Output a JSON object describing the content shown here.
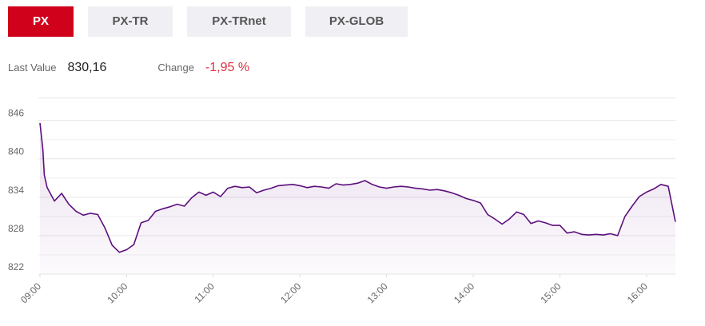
{
  "tabs": [
    {
      "label": "PX",
      "selected": true
    },
    {
      "label": "PX-TR",
      "selected": false
    },
    {
      "label": "PX-TRnet",
      "selected": false
    },
    {
      "label": "PX-GLOB",
      "selected": false
    }
  ],
  "stats": {
    "last_value_label": "Last Value",
    "last_value": "830,16",
    "change_label": "Change",
    "change": "-1,95 %"
  },
  "chart_data": {
    "type": "line",
    "x": [
      "09:00",
      "09:02",
      "09:03",
      "09:05",
      "09:10",
      "09:15",
      "09:20",
      "09:25",
      "09:30",
      "09:35",
      "09:40",
      "09:45",
      "09:50",
      "09:55",
      "10:00",
      "10:05",
      "10:10",
      "10:15",
      "10:20",
      "10:25",
      "10:30",
      "10:35",
      "10:40",
      "10:45",
      "10:50",
      "10:55",
      "11:00",
      "11:05",
      "11:10",
      "11:15",
      "11:20",
      "11:25",
      "11:30",
      "11:35",
      "11:40",
      "11:45",
      "11:50",
      "11:55",
      "12:00",
      "12:05",
      "12:10",
      "12:15",
      "12:20",
      "12:25",
      "12:30",
      "12:35",
      "12:40",
      "12:45",
      "12:50",
      "12:55",
      "13:00",
      "13:05",
      "13:10",
      "13:15",
      "13:20",
      "13:25",
      "13:30",
      "13:35",
      "13:40",
      "13:45",
      "13:50",
      "13:55",
      "14:00",
      "14:05",
      "14:10",
      "14:15",
      "14:20",
      "14:25",
      "14:30",
      "14:35",
      "14:40",
      "14:45",
      "14:50",
      "14:55",
      "15:00",
      "15:05",
      "15:10",
      "15:15",
      "15:20",
      "15:25",
      "15:30",
      "15:35",
      "15:40",
      "15:45",
      "15:50",
      "15:55",
      "16:00",
      "16:05",
      "16:10",
      "16:15",
      "16:20"
    ],
    "series": [
      {
        "name": "PX",
        "color": "#5c0f7c",
        "values": [
          845.6,
          841.5,
          837.5,
          835.5,
          833.4,
          834.6,
          832.9,
          831.8,
          831.2,
          831.5,
          831.3,
          829.2,
          826.5,
          825.4,
          825.8,
          826.6,
          830.0,
          830.4,
          831.8,
          832.2,
          832.5,
          832.9,
          832.6,
          833.9,
          834.8,
          834.3,
          834.8,
          834.1,
          835.4,
          835.7,
          835.5,
          835.6,
          834.7,
          835.1,
          835.4,
          835.8,
          835.9,
          836.0,
          835.8,
          835.5,
          835.7,
          835.6,
          835.4,
          836.1,
          835.9,
          836.0,
          836.2,
          836.6,
          836.0,
          835.6,
          835.4,
          835.6,
          835.7,
          835.6,
          835.4,
          835.3,
          835.1,
          835.2,
          835.0,
          834.7,
          834.3,
          833.8,
          833.5,
          833.1,
          831.3,
          830.6,
          829.8,
          830.6,
          831.7,
          831.3,
          829.9,
          830.3,
          830.0,
          829.6,
          829.6,
          828.4,
          828.6,
          828.2,
          828.1,
          828.2,
          828.1,
          828.3,
          828.0,
          831.0,
          832.6,
          834.1,
          834.8,
          835.3,
          836.0,
          835.7,
          830.16
        ]
      }
    ],
    "xlim": [
      "09:00",
      "16:20"
    ],
    "xticks": [
      "09:00",
      "10:00",
      "11:00",
      "12:00",
      "13:00",
      "14:00",
      "15:00",
      "16:00"
    ],
    "ylim": [
      822,
      849.5
    ],
    "yticks": [
      822,
      828,
      834,
      840,
      846
    ],
    "y_minor_ticks": [
      825,
      831,
      837,
      843
    ],
    "grid": true
  }
}
